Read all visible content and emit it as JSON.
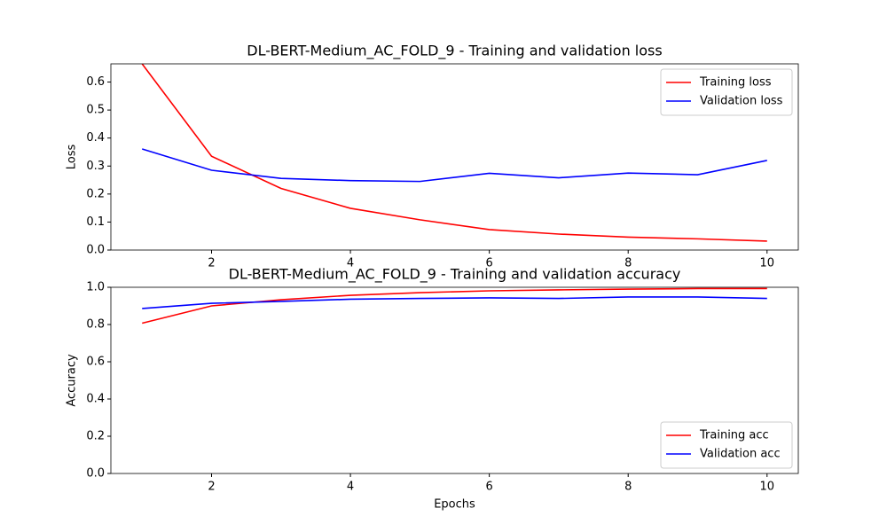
{
  "chart_data": [
    {
      "type": "line",
      "title": "DL-BERT-Medium_AC_FOLD_9 - Training and validation loss",
      "y_label": "Loss",
      "x": [
        1,
        2,
        3,
        4,
        5,
        6,
        7,
        8,
        9,
        10
      ],
      "series": [
        {
          "name": "Training loss",
          "color": "#ff0000",
          "values": [
            0.665,
            0.335,
            0.22,
            0.149,
            0.108,
            0.073,
            0.057,
            0.046,
            0.04,
            0.032
          ]
        },
        {
          "name": "Validation loss",
          "color": "#0000ff",
          "values": [
            0.361,
            0.285,
            0.256,
            0.248,
            0.245,
            0.274,
            0.258,
            0.275,
            0.269,
            0.32
          ]
        }
      ],
      "xlim": [
        0.55,
        10.45
      ],
      "xticks": [
        2,
        4,
        6,
        8,
        10
      ],
      "ylim": [
        0,
        0.665
      ],
      "yticks": [
        {
          "value": 0,
          "label": "0.0"
        },
        0.1,
        0.2,
        0.3,
        0.4,
        0.5,
        0.6
      ],
      "legend": "upper right"
    },
    {
      "type": "line",
      "title": "DL-BERT-Medium_AC_FOLD_9 - Training and validation accuracy",
      "x_label": "Epochs",
      "y_label": "Accuracy",
      "x": [
        1,
        2,
        3,
        4,
        5,
        6,
        7,
        8,
        9,
        10
      ],
      "series": [
        {
          "name": "Training acc",
          "color": "#ff0000",
          "values": [
            0.807,
            0.9,
            0.933,
            0.957,
            0.971,
            0.981,
            0.986,
            0.99,
            0.993,
            0.993
          ]
        },
        {
          "name": "Validation acc",
          "color": "#0000ff",
          "values": [
            0.886,
            0.914,
            0.924,
            0.936,
            0.94,
            0.943,
            0.94,
            0.948,
            0.948,
            0.94
          ]
        }
      ],
      "xlim": [
        0.55,
        10.45
      ],
      "xticks": [
        2,
        4,
        6,
        8,
        10
      ],
      "ylim": [
        0,
        1
      ],
      "yticks": [
        {
          "value": 0,
          "label": "0.0"
        },
        0.2,
        0.4,
        0.6,
        0.8,
        {
          "value": 1,
          "label": "1.0"
        }
      ],
      "legend": "lower right"
    }
  ]
}
